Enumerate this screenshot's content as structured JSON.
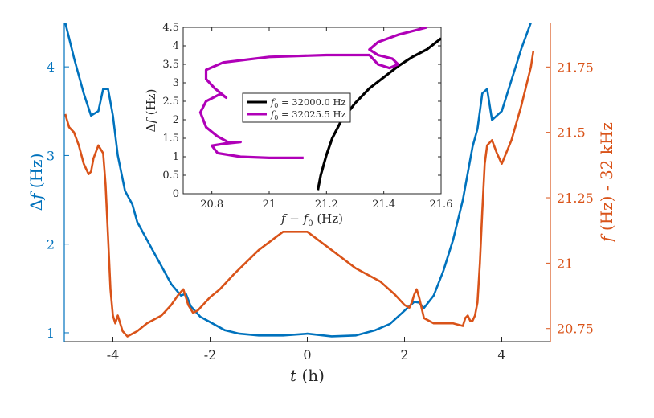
{
  "colors": {
    "blue": "#0072BD",
    "orange": "#D95319",
    "black": "#000000",
    "purple": "#B000B8"
  },
  "chart_data": [
    {
      "type": "line",
      "xlabel": "t (h)",
      "ylabel_left": "Δf (Hz)",
      "ylabel_right": "f (Hz) - 32 kHz",
      "xlim": [
        -5,
        5
      ],
      "ylim_left": [
        0.9,
        4.5
      ],
      "ylim_right": [
        20.7,
        21.92
      ],
      "xticks": [
        -4,
        -2,
        0,
        2,
        4
      ],
      "xtick_labels": [
        "-4",
        "-2",
        "0",
        "2",
        "4"
      ],
      "yticks_left": [
        1,
        2,
        3,
        4
      ],
      "ytick_labels_left": [
        "1",
        "2",
        "3",
        "4"
      ],
      "yticks_right": [
        20.75,
        21,
        21.25,
        21.5,
        21.75
      ],
      "ytick_labels_right": [
        "20.75",
        "21",
        "21.25",
        "21.5",
        "21.75"
      ],
      "grid": false,
      "series": [
        {
          "axis": "left",
          "color": "blue",
          "x": [
            -4.98,
            -4.8,
            -4.6,
            -4.45,
            -4.3,
            -4.2,
            -4.1,
            -4.0,
            -3.9,
            -3.75,
            -3.6,
            -3.5,
            -3.2,
            -3.0,
            -2.8,
            -2.6,
            -2.5,
            -2.4,
            -2.2,
            -2.0,
            -1.7,
            -1.4,
            -1.0,
            -0.5,
            0.0,
            0.5,
            1.0,
            1.4,
            1.7,
            2.0,
            2.2,
            2.3,
            2.4,
            2.6,
            2.8,
            3.0,
            3.2,
            3.4,
            3.5,
            3.6,
            3.7,
            3.8,
            4.0,
            4.2,
            4.4,
            4.6
          ],
          "y": [
            4.5,
            4.1,
            3.7,
            3.45,
            3.5,
            3.75,
            3.75,
            3.45,
            3.0,
            2.6,
            2.45,
            2.25,
            1.95,
            1.75,
            1.55,
            1.42,
            1.44,
            1.3,
            1.18,
            1.12,
            1.03,
            0.99,
            0.97,
            0.97,
            0.99,
            0.96,
            0.97,
            1.03,
            1.1,
            1.25,
            1.35,
            1.34,
            1.28,
            1.42,
            1.7,
            2.05,
            2.5,
            3.1,
            3.3,
            3.7,
            3.75,
            3.4,
            3.5,
            3.85,
            4.2,
            4.5
          ]
        },
        {
          "axis": "right",
          "color": "orange",
          "x": [
            -4.98,
            -4.9,
            -4.8,
            -4.7,
            -4.6,
            -4.5,
            -4.45,
            -4.4,
            -4.3,
            -4.2,
            -4.15,
            -4.1,
            -4.05,
            -4.0,
            -3.95,
            -3.9,
            -3.85,
            -3.8,
            -3.75,
            -3.7,
            -3.6,
            -3.5,
            -3.3,
            -3.0,
            -2.8,
            -2.65,
            -2.55,
            -2.45,
            -2.35,
            -2.25,
            -2.1,
            -2.0,
            -1.8,
            -1.5,
            -1.0,
            -0.5,
            0.0,
            0.5,
            1.0,
            1.5,
            1.8,
            2.0,
            2.1,
            2.15,
            2.2,
            2.25,
            2.3,
            2.4,
            2.6,
            3.0,
            3.2,
            3.25,
            3.3,
            3.35,
            3.4,
            3.45,
            3.5,
            3.55,
            3.6,
            3.65,
            3.7,
            3.8,
            3.9,
            4.0,
            4.2,
            4.4,
            4.6,
            4.65
          ],
          "y": [
            21.57,
            21.52,
            21.5,
            21.45,
            21.38,
            21.34,
            21.35,
            21.4,
            21.45,
            21.42,
            21.3,
            21.1,
            20.9,
            20.8,
            20.77,
            20.8,
            20.77,
            20.74,
            20.73,
            20.72,
            20.73,
            20.74,
            20.77,
            20.8,
            20.84,
            20.88,
            20.9,
            20.84,
            20.81,
            20.82,
            20.85,
            20.87,
            20.9,
            20.96,
            21.05,
            21.12,
            21.12,
            21.05,
            20.98,
            20.93,
            20.88,
            20.84,
            20.83,
            20.85,
            20.88,
            20.9,
            20.87,
            20.79,
            20.77,
            20.77,
            20.76,
            20.79,
            20.8,
            20.78,
            20.78,
            20.8,
            20.85,
            21.0,
            21.2,
            21.38,
            21.45,
            21.47,
            21.42,
            21.38,
            21.47,
            21.6,
            21.75,
            21.81
          ]
        }
      ]
    },
    {
      "type": "line",
      "xlabel": "f − f0 (Hz)",
      "ylabel": "Δf (Hz)",
      "xlim": [
        20.7,
        21.6
      ],
      "ylim": [
        0,
        4.5
      ],
      "xticks": [
        20.8,
        21,
        21.2,
        21.4,
        21.6
      ],
      "xtick_labels": [
        "20.8",
        "21",
        "21.2",
        "21.4",
        "21.6"
      ],
      "yticks": [
        0,
        0.5,
        1,
        1.5,
        2,
        2.5,
        3,
        3.5,
        4,
        4.5
      ],
      "ytick_labels": [
        "0",
        "0.5",
        "1",
        "1.5",
        "2",
        "2.5",
        "3",
        "3.5",
        "4",
        "4.5"
      ],
      "legend_position": "center-left",
      "series": [
        {
          "name": "f0 = 32000.0 Hz",
          "legend_main": "f",
          "legend_sub": "0",
          "legend_rest": " = 32000.0 Hz",
          "color": "black",
          "x": [
            21.17,
            21.18,
            21.2,
            21.22,
            21.25,
            21.3,
            21.35,
            21.4,
            21.45,
            21.5,
            21.55,
            21.6
          ],
          "y": [
            0.1,
            0.5,
            1.05,
            1.5,
            1.95,
            2.45,
            2.85,
            3.15,
            3.45,
            3.7,
            3.9,
            4.2
          ]
        },
        {
          "name": "f0 = 32025.5 Hz",
          "legend_main": "f",
          "legend_sub": "0",
          "legend_rest": " = 32025.5 Hz",
          "color": "purple",
          "x": [
            21.12,
            21.0,
            20.9,
            20.82,
            20.8,
            20.84,
            20.9,
            20.86,
            20.82,
            20.78,
            20.76,
            20.78,
            20.83,
            20.85,
            20.81,
            20.78,
            20.78,
            20.84,
            21.0,
            21.2,
            21.35,
            21.38,
            21.42,
            21.45,
            21.43,
            21.38,
            21.35,
            21.38,
            21.45,
            21.55
          ],
          "y": [
            0.97,
            0.97,
            1.0,
            1.1,
            1.3,
            1.35,
            1.4,
            1.38,
            1.55,
            1.8,
            2.2,
            2.5,
            2.7,
            2.6,
            2.85,
            3.1,
            3.35,
            3.55,
            3.7,
            3.75,
            3.75,
            3.5,
            3.4,
            3.5,
            3.65,
            3.75,
            3.9,
            4.1,
            4.3,
            4.5
          ]
        }
      ]
    }
  ]
}
